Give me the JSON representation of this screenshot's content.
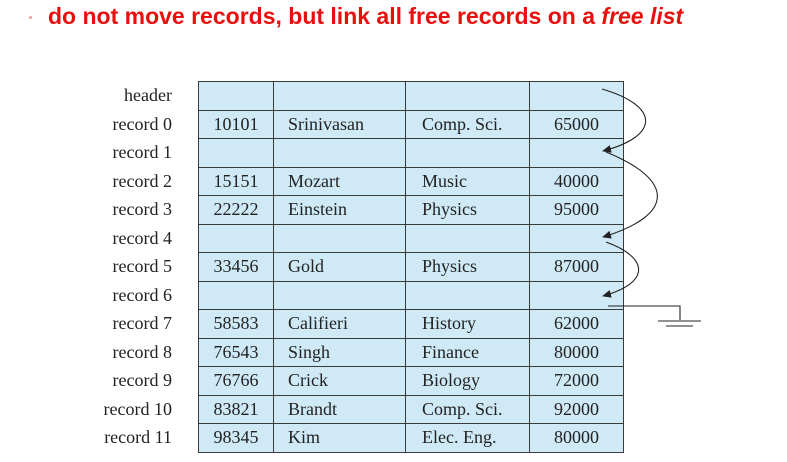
{
  "title": {
    "prefix": "do not move records, but link all free records on a ",
    "emphasis": "free list"
  },
  "rows": [
    {
      "label": "header",
      "id": "",
      "name": "",
      "dept": "",
      "salary": ""
    },
    {
      "label": "record 0",
      "id": "10101",
      "name": "Srinivasan",
      "dept": "Comp. Sci.",
      "salary": "65000"
    },
    {
      "label": "record 1",
      "id": "",
      "name": "",
      "dept": "",
      "salary": ""
    },
    {
      "label": "record 2",
      "id": "15151",
      "name": "Mozart",
      "dept": "Music",
      "salary": "40000"
    },
    {
      "label": "record 3",
      "id": "22222",
      "name": "Einstein",
      "dept": "Physics",
      "salary": "95000"
    },
    {
      "label": "record 4",
      "id": "",
      "name": "",
      "dept": "",
      "salary": ""
    },
    {
      "label": "record 5",
      "id": "33456",
      "name": "Gold",
      "dept": "Physics",
      "salary": "87000"
    },
    {
      "label": "record 6",
      "id": "",
      "name": "",
      "dept": "",
      "salary": ""
    },
    {
      "label": "record 7",
      "id": "58583",
      "name": "Califieri",
      "dept": "History",
      "salary": "62000"
    },
    {
      "label": "record 8",
      "id": "76543",
      "name": "Singh",
      "dept": "Finance",
      "salary": "80000"
    },
    {
      "label": "record 9",
      "id": "76766",
      "name": "Crick",
      "dept": "Biology",
      "salary": "72000"
    },
    {
      "label": "record 10",
      "id": "83821",
      "name": "Brandt",
      "dept": "Comp. Sci.",
      "salary": "92000"
    },
    {
      "label": "record 11",
      "id": "98345",
      "name": "Kim",
      "dept": "Elec. Eng.",
      "salary": "80000"
    }
  ],
  "free_list": [
    {
      "from": "header",
      "to": "record 1"
    },
    {
      "from": "record 1",
      "to": "record 4"
    },
    {
      "from": "record 4",
      "to": "record 6"
    },
    {
      "from": "record 6",
      "to": "null"
    }
  ],
  "colors": {
    "title": "#e8100f",
    "cell_fill": "#cfeaf6",
    "border": "#3a3a3a"
  }
}
